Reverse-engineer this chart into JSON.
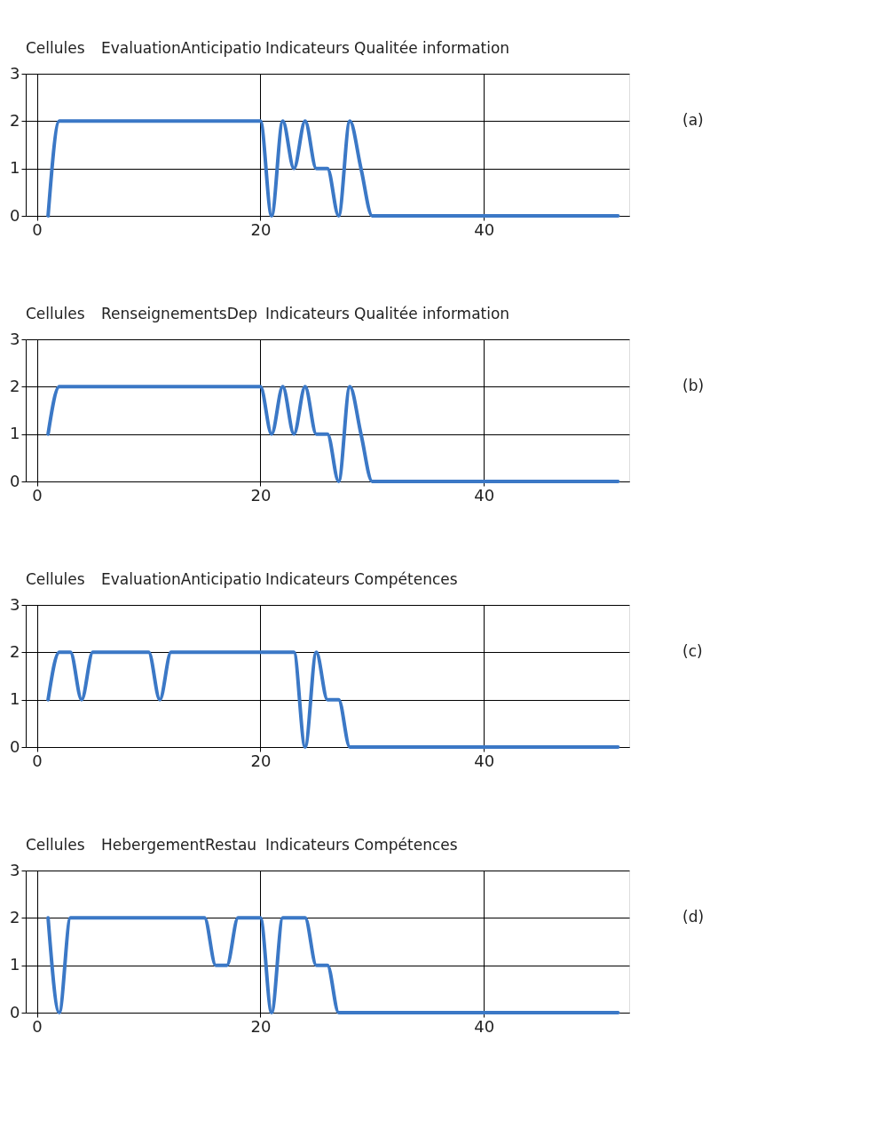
{
  "chart_data": [
    {
      "type": "line",
      "annotations": [
        "Cellules",
        "EvaluationAnticipatio",
        "Indicateurs",
        "Qualitée information",
        "(a)"
      ],
      "x": [
        1,
        2,
        3,
        4,
        5,
        6,
        7,
        8,
        9,
        10,
        11,
        12,
        13,
        14,
        15,
        16,
        17,
        18,
        19,
        20,
        21,
        22,
        23,
        24,
        25,
        26,
        27,
        28,
        29,
        30,
        31,
        32,
        33,
        34,
        35,
        36,
        37,
        38,
        39,
        40,
        41,
        42,
        43,
        44,
        45,
        46,
        47,
        48,
        49,
        50,
        51,
        52
      ],
      "series": [
        {
          "color": "#3b78c6",
          "values": [
            0,
            2,
            2,
            2,
            2,
            2,
            2,
            2,
            2,
            2,
            2,
            2,
            2,
            2,
            2,
            2,
            2,
            2,
            2,
            2,
            0,
            2,
            1,
            2,
            1,
            1,
            0,
            2,
            1,
            0,
            0,
            0,
            0,
            0,
            0,
            0,
            0,
            0,
            0,
            0,
            0,
            0,
            0,
            0,
            0,
            0,
            0,
            0,
            0,
            0,
            0,
            0
          ]
        }
      ],
      "xlim": [
        -1,
        53
      ],
      "ylim": [
        0,
        3
      ],
      "xticks": [
        0,
        20,
        40
      ],
      "yticks": [
        0,
        1,
        2,
        3
      ],
      "grid": true,
      "marker": "none",
      "line_style": "solid"
    },
    {
      "type": "line",
      "annotations": [
        "Cellules",
        "RenseignementsDep",
        "Indicateurs",
        "Qualitée information",
        "(b)"
      ],
      "x": [
        1,
        2,
        3,
        4,
        5,
        6,
        7,
        8,
        9,
        10,
        11,
        12,
        13,
        14,
        15,
        16,
        17,
        18,
        19,
        20,
        21,
        22,
        23,
        24,
        25,
        26,
        27,
        28,
        29,
        30,
        31,
        32,
        33,
        34,
        35,
        36,
        37,
        38,
        39,
        40,
        41,
        42,
        43,
        44,
        45,
        46,
        47,
        48,
        49,
        50,
        51,
        52
      ],
      "series": [
        {
          "color": "#3b78c6",
          "values": [
            1,
            2,
            2,
            2,
            2,
            2,
            2,
            2,
            2,
            2,
            2,
            2,
            2,
            2,
            2,
            2,
            2,
            2,
            2,
            2,
            1,
            2,
            1,
            2,
            1,
            1,
            0,
            2,
            1,
            0,
            0,
            0,
            0,
            0,
            0,
            0,
            0,
            0,
            0,
            0,
            0,
            0,
            0,
            0,
            0,
            0,
            0,
            0,
            0,
            0,
            0,
            0
          ]
        }
      ],
      "xlim": [
        -1,
        53
      ],
      "ylim": [
        0,
        3
      ],
      "xticks": [
        0,
        20,
        40
      ],
      "yticks": [
        0,
        1,
        2,
        3
      ],
      "grid": true,
      "marker": "none",
      "line_style": "solid"
    },
    {
      "type": "line",
      "annotations": [
        "Cellules",
        "EvaluationAnticipatio",
        "Indicateurs",
        "Compétences",
        "(c)"
      ],
      "x": [
        1,
        2,
        3,
        4,
        5,
        6,
        7,
        8,
        9,
        10,
        11,
        12,
        13,
        14,
        15,
        16,
        17,
        18,
        19,
        20,
        21,
        22,
        23,
        24,
        25,
        26,
        27,
        28,
        29,
        30,
        31,
        32,
        33,
        34,
        35,
        36,
        37,
        38,
        39,
        40,
        41,
        42,
        43,
        44,
        45,
        46,
        47,
        48,
        49,
        50,
        51,
        52
      ],
      "series": [
        {
          "color": "#3b78c6",
          "values": [
            1,
            2,
            2,
            1,
            2,
            2,
            2,
            2,
            2,
            2,
            1,
            2,
            2,
            2,
            2,
            2,
            2,
            2,
            2,
            2,
            2,
            2,
            2,
            0,
            2,
            1,
            1,
            0,
            0,
            0,
            0,
            0,
            0,
            0,
            0,
            0,
            0,
            0,
            0,
            0,
            0,
            0,
            0,
            0,
            0,
            0,
            0,
            0,
            0,
            0,
            0,
            0
          ]
        }
      ],
      "xlim": [
        -1,
        53
      ],
      "ylim": [
        0,
        3
      ],
      "xticks": [
        0,
        20,
        40
      ],
      "yticks": [
        0,
        1,
        2,
        3
      ],
      "grid": true,
      "marker": "none",
      "line_style": "solid"
    },
    {
      "type": "line",
      "annotations": [
        "Cellules",
        "HebergementRestau",
        "Indicateurs",
        "Compétences",
        "(d)"
      ],
      "x": [
        1,
        2,
        3,
        4,
        5,
        6,
        7,
        8,
        9,
        10,
        11,
        12,
        13,
        14,
        15,
        16,
        17,
        18,
        19,
        20,
        21,
        22,
        23,
        24,
        25,
        26,
        27,
        28,
        29,
        30,
        31,
        32,
        33,
        34,
        35,
        36,
        37,
        38,
        39,
        40,
        41,
        42,
        43,
        44,
        45,
        46,
        47,
        48,
        49,
        50,
        51,
        52
      ],
      "series": [
        {
          "color": "#3b78c6",
          "values": [
            2,
            0,
            2,
            2,
            2,
            2,
            2,
            2,
            2,
            2,
            2,
            2,
            2,
            2,
            2,
            1,
            1,
            2,
            2,
            2,
            0,
            2,
            2,
            2,
            1,
            1,
            0,
            0,
            0,
            0,
            0,
            0,
            0,
            0,
            0,
            0,
            0,
            0,
            0,
            0,
            0,
            0,
            0,
            0,
            0,
            0,
            0,
            0,
            0,
            0,
            0,
            0
          ]
        }
      ],
      "xlim": [
        -1,
        53
      ],
      "ylim": [
        0,
        3
      ],
      "xticks": [
        0,
        20,
        40
      ],
      "yticks": [
        0,
        1,
        2,
        3
      ],
      "grid": true,
      "marker": "none",
      "line_style": "solid"
    }
  ]
}
